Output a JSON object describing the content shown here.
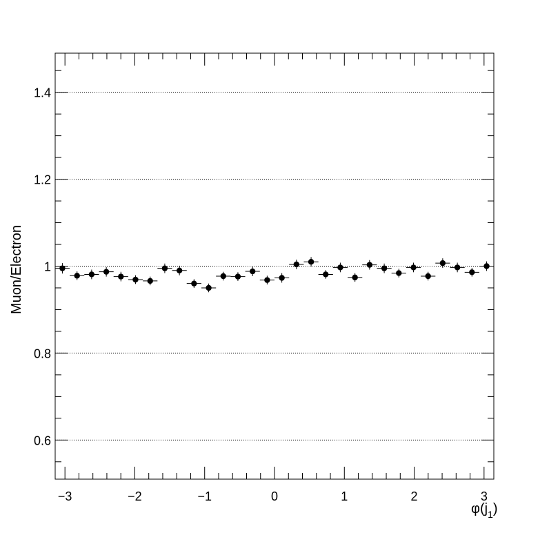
{
  "chart_data": {
    "type": "scatter",
    "title": "",
    "xlabel": "φ(j",
    "xlabel_subscript": "1",
    "xlabel_close": ")",
    "ylabel": "Muon/Electron",
    "xlim": [
      -3.14,
      3.14
    ],
    "ylim": [
      0.51,
      1.49
    ],
    "grid": "horizontal dotted",
    "x_ticks": [
      -3,
      -2,
      -1,
      0,
      1,
      2,
      3
    ],
    "x_tick_labels": [
      "−3",
      "−2",
      "−1",
      "0",
      "1",
      "2",
      "3"
    ],
    "y_ticks": [
      0.6,
      0.8,
      1.0,
      1.2,
      1.4
    ],
    "y_tick_labels": [
      "0.6",
      "0.8",
      "1",
      "1.2",
      "1.4"
    ],
    "x_bin_halfwidth": 0.1047,
    "series": [
      {
        "x": [
          -3.037,
          -2.827,
          -2.618,
          -2.408,
          -2.199,
          -1.99,
          -1.78,
          -1.571,
          -1.361,
          -1.152,
          -0.942,
          -0.733,
          -0.524,
          -0.314,
          -0.105,
          0.105,
          0.314,
          0.524,
          0.733,
          0.942,
          1.152,
          1.361,
          1.571,
          1.78,
          1.99,
          2.199,
          2.408,
          2.618,
          2.827,
          3.037
        ],
        "y": [
          0.995,
          0.978,
          0.981,
          0.987,
          0.976,
          0.969,
          0.966,
          0.995,
          0.99,
          0.96,
          0.95,
          0.977,
          0.976,
          0.988,
          0.968,
          0.973,
          1.004,
          1.01,
          0.981,
          0.997,
          0.974,
          1.003,
          0.995,
          0.984,
          0.997,
          0.977,
          1.007,
          0.997,
          0.986,
          1.0
        ],
        "yerr": [
          0.012,
          0.01,
          0.011,
          0.011,
          0.011,
          0.01,
          0.01,
          0.011,
          0.011,
          0.01,
          0.01,
          0.01,
          0.01,
          0.011,
          0.01,
          0.011,
          0.011,
          0.011,
          0.01,
          0.011,
          0.01,
          0.011,
          0.011,
          0.01,
          0.011,
          0.01,
          0.011,
          0.011,
          0.01,
          0.011
        ]
      }
    ]
  }
}
